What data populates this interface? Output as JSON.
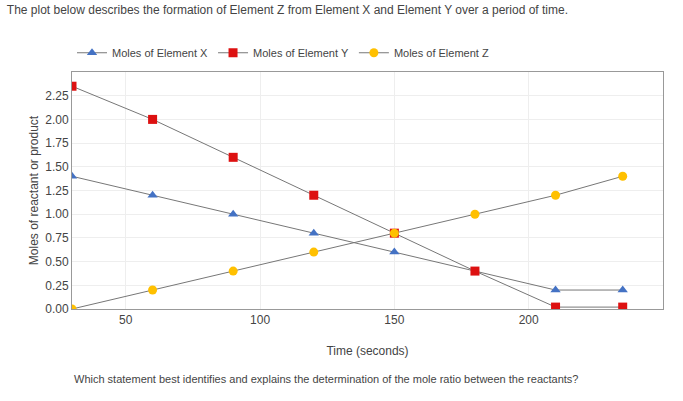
{
  "chart_data": {
    "type": "line",
    "title": "The plot below describes the formation of Element Z from Element X and Element Y over a period of time.",
    "annotations": [
      "Which statement best identifies and explains the determination of the mole ratio between the reactants?"
    ],
    "xlabel": "Time (seconds)",
    "ylabel": "Moles of reactant or product",
    "xlim": [
      30,
      250
    ],
    "ylim": [
      0.0,
      2.5
    ],
    "xticks": [
      50,
      100,
      150,
      200
    ],
    "yticks": [
      {
        "value": 0.0,
        "label": "0.00"
      },
      {
        "value": 0.25,
        "label": "0.25"
      },
      {
        "value": 0.5,
        "label": "0.50"
      },
      {
        "value": 0.75,
        "label": "0.75"
      },
      {
        "value": 1.0,
        "label": "1.00"
      },
      {
        "value": 1.25,
        "label": "1.25"
      },
      {
        "value": 1.5,
        "label": "1.50"
      },
      {
        "value": 1.75,
        "label": "1.75"
      },
      {
        "value": 2.0,
        "label": "2.00"
      },
      {
        "value": 2.25,
        "label": "2.25"
      }
    ],
    "grid": true,
    "legend": "top",
    "series": [
      {
        "name": "Moles of Element X",
        "color": "#4472C4",
        "marker": "triangle",
        "x": [
          30,
          60,
          90,
          120,
          150,
          210,
          235
        ],
        "values": [
          1.4,
          1.2,
          1.0,
          0.8,
          0.6,
          0.2,
          0.2
        ]
      },
      {
        "name": "Moles of Element Y",
        "color": "#DD1111",
        "marker": "square",
        "x": [
          30,
          60,
          90,
          120,
          150,
          180,
          210,
          235
        ],
        "values": [
          2.35,
          2.0,
          1.6,
          1.2,
          0.8,
          0.4,
          0.02,
          0.02
        ]
      },
      {
        "name": "Moles of Element Z",
        "color": "#FFC000",
        "marker": "circle",
        "x": [
          30,
          60,
          90,
          120,
          150,
          180,
          210,
          235
        ],
        "values": [
          0.0,
          0.2,
          0.4,
          0.6,
          0.8,
          1.0,
          1.2,
          1.4
        ]
      }
    ]
  }
}
